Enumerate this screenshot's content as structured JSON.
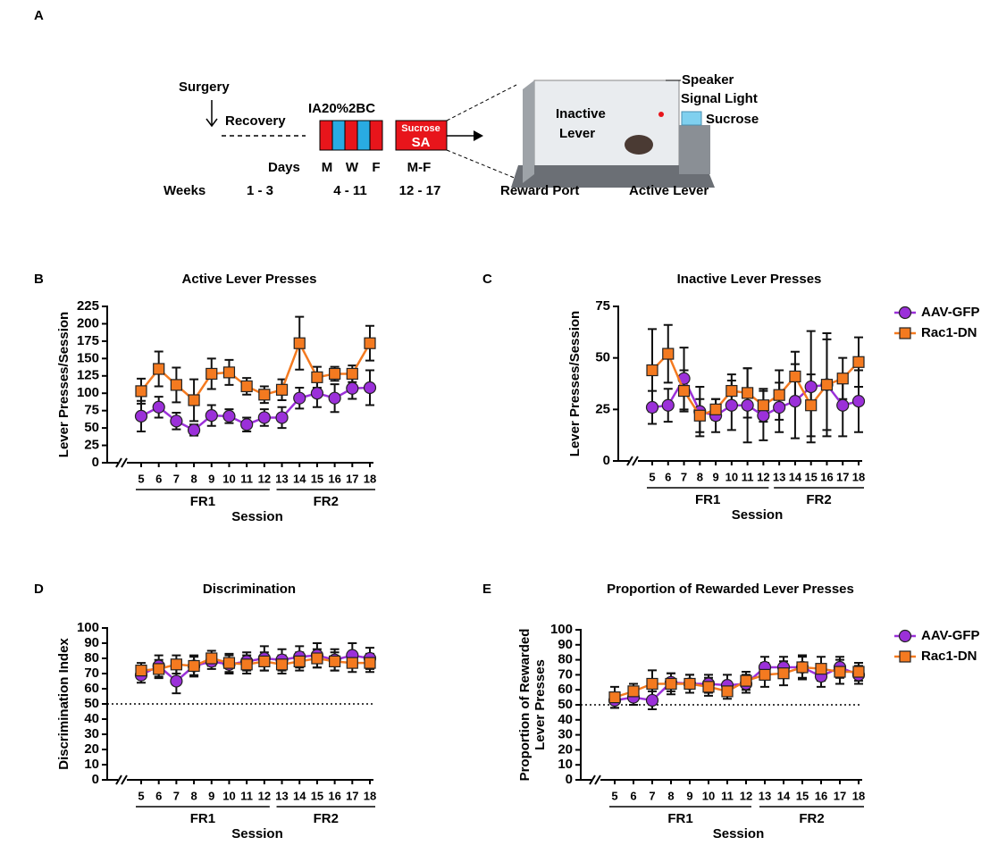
{
  "panel_labels": [
    "A",
    "B",
    "C",
    "D",
    "E"
  ],
  "panel_a": {
    "surgery": "Surgery",
    "recovery": "Recovery",
    "ia": "IA20%2BC",
    "sucrose_box": "Sucrose",
    "sa": "SA",
    "days": "Days",
    "day_m": "M",
    "day_w": "W",
    "day_f": "F",
    "day_mf": "M-F",
    "weeks": "Weeks",
    "weeks_1": "1 - 3",
    "weeks_2": "4 - 11",
    "weeks_3": "12 - 17",
    "speaker": "Speaker",
    "signal_light": "Signal Light",
    "sucrose": "Sucrose",
    "inactive_1": "Inactive",
    "inactive_2": "Lever",
    "reward_port": "Reward Port",
    "active_lever": "Active Lever"
  },
  "chart_data": [
    {
      "type": "line",
      "title": "Active Lever Presses",
      "x_label": "Session",
      "y_label": "Lever Presses/Session",
      "categories": [
        "5",
        "6",
        "7",
        "8",
        "9",
        "10",
        "11",
        "12",
        "13",
        "14",
        "15",
        "16",
        "17",
        "18"
      ],
      "groups": [
        {
          "label": "FR1",
          "first": "5",
          "last": "12"
        },
        {
          "label": "FR2",
          "first": "13",
          "last": "18"
        }
      ],
      "ylim": [
        0,
        225
      ],
      "yticks": [
        0,
        25,
        50,
        75,
        100,
        125,
        150,
        175,
        200,
        225
      ],
      "legend": false,
      "series": [
        {
          "name": "AAV-GFP",
          "color": "#9b30d9",
          "marker": "circle",
          "values": [
            67,
            80,
            60,
            47,
            68,
            67,
            55,
            65,
            65,
            93,
            100,
            93,
            107,
            108
          ],
          "errors": [
            22,
            15,
            12,
            8,
            15,
            10,
            10,
            12,
            15,
            15,
            20,
            20,
            15,
            25
          ]
        },
        {
          "name": "Rac1-DN",
          "color": "#f47a20",
          "marker": "square",
          "values": [
            103,
            135,
            112,
            90,
            128,
            130,
            110,
            98,
            105,
            172,
            123,
            128,
            128,
            172
          ],
          "errors": [
            18,
            25,
            25,
            30,
            22,
            18,
            12,
            12,
            15,
            38,
            15,
            10,
            12,
            25
          ]
        }
      ]
    },
    {
      "type": "line",
      "title": "Inactive Lever Presses",
      "x_label": "Session",
      "y_label": "Lever Presses/Session",
      "categories": [
        "5",
        "6",
        "7",
        "8",
        "9",
        "10",
        "11",
        "12",
        "13",
        "14",
        "15",
        "16",
        "17",
        "18"
      ],
      "groups": [
        {
          "label": "FR1",
          "first": "5",
          "last": "12"
        },
        {
          "label": "FR2",
          "first": "13",
          "last": "18"
        }
      ],
      "ylim": [
        0,
        75
      ],
      "yticks": [
        0,
        25,
        50,
        75
      ],
      "legend": true,
      "series": [
        {
          "name": "AAV-GFP",
          "color": "#9b30d9",
          "marker": "circle",
          "values": [
            26,
            27,
            40,
            24,
            22,
            27,
            27,
            22,
            26,
            29,
            36,
            37,
            27,
            29
          ],
          "errors": [
            8,
            8,
            15,
            12,
            8,
            12,
            18,
            12,
            12,
            18,
            27,
            25,
            15,
            15
          ]
        },
        {
          "name": "Rac1-DN",
          "color": "#f47a20",
          "marker": "square",
          "values": [
            44,
            52,
            34,
            22,
            25,
            34,
            33,
            27,
            32,
            41,
            27,
            37,
            40,
            48
          ],
          "errors": [
            20,
            14,
            10,
            8,
            5,
            8,
            12,
            8,
            12,
            12,
            15,
            22,
            10,
            12
          ]
        }
      ]
    },
    {
      "type": "line",
      "title": "Discrimination",
      "x_label": "Session",
      "y_label": "Discrimination Index",
      "categories": [
        "5",
        "6",
        "7",
        "8",
        "9",
        "10",
        "11",
        "12",
        "13",
        "14",
        "15",
        "16",
        "17",
        "18"
      ],
      "groups": [
        {
          "label": "FR1",
          "first": "5",
          "last": "12"
        },
        {
          "label": "FR2",
          "first": "13",
          "last": "18"
        }
      ],
      "ylim": [
        0,
        100
      ],
      "yticks": [
        0,
        10,
        20,
        30,
        40,
        50,
        60,
        70,
        80,
        90,
        100
      ],
      "reference_line": 50,
      "legend": false,
      "series": [
        {
          "name": "AAV-GFP",
          "color": "#9b30d9",
          "marker": "circle",
          "values": [
            69,
            75,
            65,
            75,
            78,
            76,
            78,
            80,
            79,
            81,
            82,
            79,
            82,
            80
          ],
          "errors": [
            5,
            7,
            8,
            7,
            5,
            6,
            6,
            8,
            7,
            7,
            8,
            7,
            8,
            7
          ]
        },
        {
          "name": "Rac1-DN",
          "color": "#f47a20",
          "marker": "square",
          "values": [
            72,
            73,
            76,
            75,
            80,
            77,
            76,
            78,
            76,
            78,
            80,
            78,
            77,
            77
          ],
          "errors": [
            5,
            6,
            6,
            6,
            5,
            6,
            6,
            6,
            6,
            6,
            6,
            6,
            6,
            6
          ]
        }
      ]
    },
    {
      "type": "line",
      "title": "Proportion of Rewarded Lever Presses",
      "x_label": "Session",
      "y_label": [
        "Proportion of Rewarded",
        "Lever Presses"
      ],
      "categories": [
        "5",
        "6",
        "7",
        "8",
        "9",
        "10",
        "11",
        "12",
        "13",
        "14",
        "15",
        "16",
        "17",
        "18"
      ],
      "groups": [
        {
          "label": "FR1",
          "first": "5",
          "last": "12"
        },
        {
          "label": "FR2",
          "first": "13",
          "last": "18"
        }
      ],
      "ylim": [
        0,
        100
      ],
      "yticks": [
        0,
        10,
        20,
        30,
        40,
        50,
        60,
        70,
        80,
        90,
        100
      ],
      "reference_line": 50,
      "legend": true,
      "series": [
        {
          "name": "AAV-GFP",
          "color": "#9b30d9",
          "marker": "circle",
          "values": [
            53,
            55,
            53,
            65,
            64,
            64,
            63,
            64,
            75,
            75,
            75,
            69,
            75,
            70
          ],
          "errors": [
            5,
            5,
            6,
            6,
            6,
            6,
            7,
            6,
            7,
            7,
            8,
            7,
            7,
            6
          ]
        },
        {
          "name": "Rac1-DN",
          "color": "#f47a20",
          "marker": "square",
          "values": [
            55,
            59,
            64,
            64,
            64,
            62,
            59,
            66,
            70,
            71,
            75,
            74,
            72,
            72
          ],
          "errors": [
            7,
            5,
            9,
            7,
            6,
            6,
            5,
            6,
            8,
            8,
            7,
            8,
            8,
            6
          ]
        }
      ]
    }
  ]
}
